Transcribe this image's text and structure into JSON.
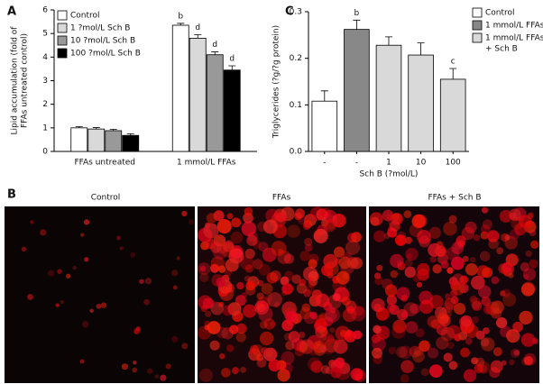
{
  "chart_data": [
    {
      "type": "bar",
      "label": "A",
      "ylabel": [
        "Lipid accumulation (fold of",
        "FFAs untreated control)"
      ],
      "categories": [
        "FFAs untreated",
        "1 mmol/L FFAs"
      ],
      "series": [
        {
          "name": "Control",
          "color": "#ffffff",
          "values": [
            1.0,
            5.35
          ],
          "errors": [
            0.05,
            0.08
          ],
          "letters": [
            null,
            "b"
          ]
        },
        {
          "name": "1 ?mol/L Sch B",
          "color": "#d9d9d9",
          "values": [
            0.95,
            4.8
          ],
          "errors": [
            0.06,
            0.15
          ],
          "letters": [
            null,
            "d"
          ]
        },
        {
          "name": "10 ?mol/L Sch B",
          "color": "#999999",
          "values": [
            0.88,
            4.1
          ],
          "errors": [
            0.06,
            0.12
          ],
          "letters": [
            null,
            "d"
          ]
        },
        {
          "name": "100 ?mol/L Sch B",
          "color": "#000000",
          "values": [
            0.68,
            3.45
          ],
          "errors": [
            0.07,
            0.18
          ],
          "letters": [
            null,
            "d"
          ]
        }
      ],
      "ylim": [
        0,
        6
      ],
      "yticks": [
        0,
        1,
        2,
        3,
        4,
        5,
        6
      ]
    },
    {
      "type": "bar",
      "label": "C",
      "ylabel": [
        "Triglycerides (?g/?g protein)"
      ],
      "xlabel": "Sch B (?mol/L)",
      "categories": [
        "-",
        "-",
        "1",
        "10",
        "100"
      ],
      "values": [
        0.108,
        0.262,
        0.228,
        0.207,
        0.155
      ],
      "errors": [
        0.022,
        0.02,
        0.018,
        0.026,
        0.023
      ],
      "letters": [
        null,
        "b",
        null,
        null,
        "c"
      ],
      "colors": [
        "#ffffff",
        "#888888",
        "#d9d9d9",
        "#d9d9d9",
        "#d9d9d9"
      ],
      "legend": [
        {
          "name": [
            "Control"
          ],
          "color": "#ffffff"
        },
        {
          "name": [
            "1 mmol/L FFAs"
          ],
          "color": "#888888"
        },
        {
          "name": [
            "1 mmol/L FFAs",
            "+ Sch B"
          ],
          "color": "#d9d9d9"
        }
      ],
      "ylim": [
        0,
        0.3
      ],
      "yticks": [
        {
          "value": 0,
          "label": "0.0"
        },
        0.1,
        0.2,
        0.3
      ]
    }
  ],
  "micrographs": {
    "label": "B",
    "titles": [
      "Control",
      "FFAs",
      "FFAs + Sch B"
    ]
  }
}
